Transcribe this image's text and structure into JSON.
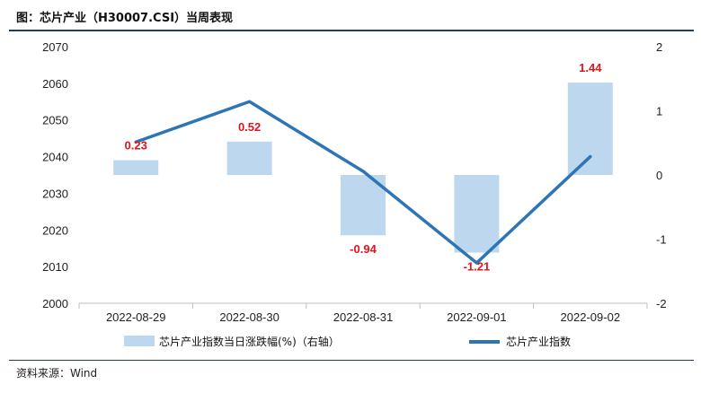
{
  "header": {
    "title": "图：芯片产业（H30007.CSI）当周表现"
  },
  "footer": {
    "source": "资料来源：Wind"
  },
  "chart_data": {
    "type": "bar",
    "categories": [
      "2022-08-29",
      "2022-08-30",
      "2022-08-31",
      "2022-09-01",
      "2022-09-02"
    ],
    "series": [
      {
        "name": "芯片产业指数当日涨跌幅(%)（右轴）",
        "type": "bar",
        "axis": "right",
        "values": [
          0.23,
          0.52,
          -0.94,
          -1.21,
          1.44
        ],
        "color": "#bdd7ee"
      },
      {
        "name": "芯片产业指数",
        "type": "line",
        "axis": "left",
        "values": [
          2044,
          2055,
          2036,
          2011,
          2040
        ],
        "color": "#2e75b6"
      }
    ],
    "data_labels": [
      "0.23",
      "0.52",
      "-0.94",
      "-1.21",
      "1.44"
    ],
    "data_label_color": "#e0141e",
    "y_left": {
      "ylim": [
        2000,
        2070
      ],
      "ticks": [
        "2000",
        "2010",
        "2020",
        "2030",
        "2040",
        "2050",
        "2060",
        "2070"
      ]
    },
    "y_right": {
      "ylim": [
        -2,
        2
      ],
      "ticks": [
        "-2",
        "-1",
        "0",
        "1",
        "2"
      ]
    },
    "legend_position": "bottom",
    "grid": false
  }
}
